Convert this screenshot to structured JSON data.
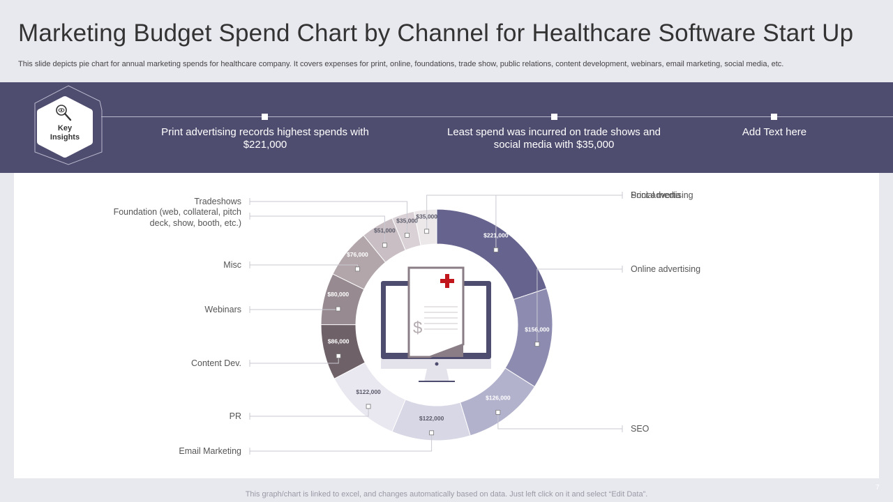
{
  "header": {
    "title": "Marketing Budget Spend Chart by Channel for Healthcare Software Start Up",
    "subtitle": "This slide depicts pie chart for annual marketing spends for healthcare company. It covers expenses for print, online, foundations, trade show, public relations, content development, webinars, email marketing, social media, etc."
  },
  "key_insights": {
    "label_line1": "Key",
    "label_line2": "Insights",
    "icon": "magnifier-eye-icon",
    "items": [
      "Print advertising records highest spends with $221,000",
      "Least spend was incurred on trade shows and social media with $35,000",
      "Add Text here"
    ]
  },
  "chart_data": {
    "type": "pie",
    "variant": "donut",
    "center_icon": "monitor-medical-invoice-icon",
    "slices": [
      {
        "label": "Print advertising",
        "value": 221000,
        "value_label": "$221,000",
        "color": "#66648e"
      },
      {
        "label": "Online advertising",
        "value": 156000,
        "value_label": "$156,000",
        "color": "#8d8cb0"
      },
      {
        "label": "SEO",
        "value": 126000,
        "value_label": "$126,000",
        "color": "#b3b2cd"
      },
      {
        "label": "Email Marketing",
        "value": 122000,
        "value_label": "$122,000",
        "color": "#d8d7e5"
      },
      {
        "label": "PR",
        "value": 122000,
        "value_label": "$122,000",
        "color": "#e9e8f0"
      },
      {
        "label": "Content Dev.",
        "value": 86000,
        "value_label": "$86,000",
        "color": "#6f6168"
      },
      {
        "label": "Webinars",
        "value": 80000,
        "value_label": "$80,000",
        "color": "#978a90"
      },
      {
        "label": "Misc",
        "value": 76000,
        "value_label": "$76,000",
        "color": "#b2a6ab"
      },
      {
        "label": "Foundation (web, collateral, pitch deck, show, booth, etc.)",
        "value": 51000,
        "value_label": "$51,000",
        "color": "#c8bec3"
      },
      {
        "label": "Tradeshows",
        "value": 35000,
        "value_label": "$35,000",
        "color": "#d9d1d5"
      },
      {
        "label": "Social media",
        "value": 35000,
        "value_label": "$35,000",
        "color": "#ece8ea"
      }
    ]
  },
  "footer": {
    "note": "This graph/chart is linked to excel,  and changes automatically based on data. Just left click on it and select “Edit Data”.",
    "page_number": "7"
  }
}
